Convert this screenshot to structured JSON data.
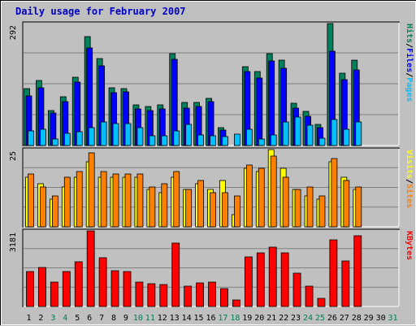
{
  "title": "Daily usage for February 2007",
  "colors": {
    "background": "#c0c0c0",
    "hits": "#00805c",
    "files": "#0000ff",
    "pages": "#00c0ff",
    "visits": "#ffff00",
    "sites": "#ff8000",
    "kbytes": "#ff0000",
    "weekday_label": "#000000",
    "weekend_label": "#00805c"
  },
  "chart_data": [
    {
      "type": "bar",
      "panel": "hits-files-pages",
      "max_label": "292",
      "ylim": [
        0,
        292
      ],
      "side_label": [
        "Pages",
        "Files",
        "Hits"
      ],
      "days": [
        1,
        2,
        3,
        4,
        5,
        6,
        7,
        8,
        9,
        10,
        11,
        12,
        13,
        14,
        15,
        16,
        17,
        18,
        19,
        20,
        21,
        22,
        23,
        24,
        25,
        26,
        27,
        28,
        29,
        30,
        31
      ],
      "weekend_days": [
        3,
        4,
        10,
        11,
        17,
        18,
        24,
        25,
        31
      ],
      "series": [
        {
          "name": "Hits",
          "values": [
            136,
            155,
            83,
            116,
            163,
            261,
            208,
            138,
            137,
            98,
            94,
            97,
            220,
            103,
            103,
            113,
            43,
            0,
            189,
            178,
            220,
            205,
            102,
            81,
            51,
            292,
            174,
            205,
            0,
            0,
            0
          ]
        },
        {
          "name": "Files",
          "values": [
            118,
            138,
            77,
            105,
            151,
            234,
            191,
            127,
            128,
            87,
            84,
            88,
            207,
            90,
            93,
            105,
            37,
            0,
            177,
            162,
            202,
            184,
            90,
            70,
            42,
            226,
            158,
            182,
            0,
            0,
            0
          ]
        },
        {
          "name": "Pages",
          "values": [
            35,
            39,
            16,
            29,
            34,
            43,
            56,
            52,
            53,
            42,
            24,
            24,
            36,
            50,
            26,
            24,
            21,
            27,
            38,
            16,
            26,
            56,
            69,
            48,
            18,
            62,
            38,
            56,
            0,
            0,
            0
          ]
        }
      ]
    },
    {
      "type": "bar",
      "panel": "visits-sites",
      "max_label": "25",
      "ylim": [
        0,
        25
      ],
      "side_label": [
        "Sites",
        "Visits"
      ],
      "series": [
        {
          "name": "Visits",
          "values": [
            16,
            14,
            9,
            13,
            16,
            21,
            16,
            16,
            16,
            16,
            12,
            11,
            16,
            12,
            14,
            12,
            15,
            4,
            19,
            18,
            25,
            19,
            12,
            10,
            9,
            21,
            16,
            12,
            0,
            0,
            0
          ]
        },
        {
          "name": "Sites",
          "values": [
            17,
            13,
            10,
            16,
            18,
            24,
            18,
            17,
            17,
            17,
            13,
            14,
            18,
            12,
            15,
            11,
            11,
            10,
            20,
            19,
            23,
            16,
            12,
            13,
            10,
            22,
            15,
            13,
            0,
            0,
            0
          ]
        }
      ]
    },
    {
      "type": "bar",
      "panel": "kbytes",
      "max_label": "3181",
      "ylim": [
        0,
        3181
      ],
      "side_label": [
        "KBytes"
      ],
      "series": [
        {
          "name": "KBytes",
          "values": [
            1455,
            1634,
            1040,
            1468,
            1870,
            3181,
            2058,
            1516,
            1455,
            1013,
            949,
            920,
            2672,
            856,
            984,
            1015,
            741,
            270,
            2090,
            2241,
            2493,
            2242,
            1390,
            845,
            357,
            2793,
            1908,
            2975,
            0,
            0,
            0
          ]
        }
      ]
    }
  ]
}
